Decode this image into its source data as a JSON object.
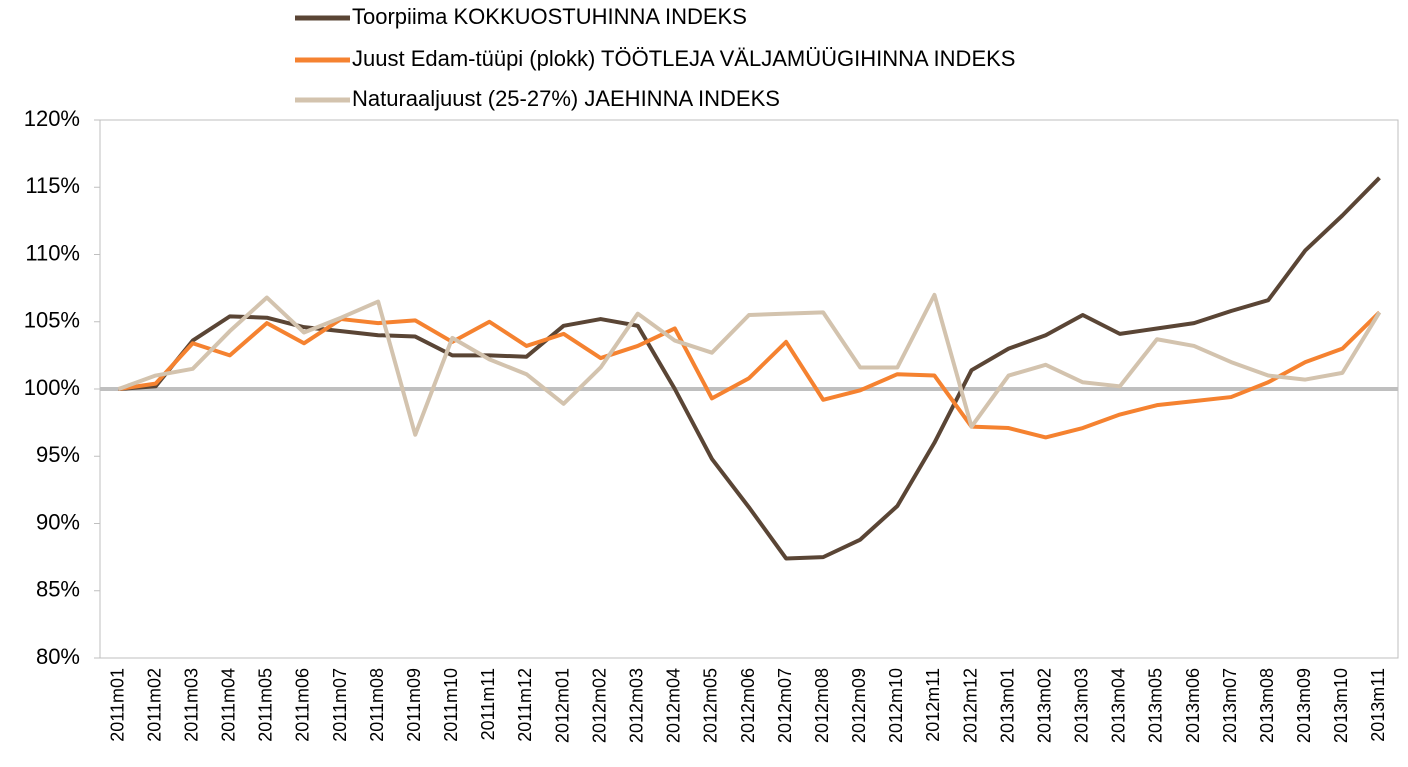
{
  "chart_data": {
    "type": "line",
    "categories": [
      "2011m01",
      "2011m02",
      "2011m03",
      "2011m04",
      "2011m05",
      "2011m06",
      "2011m07",
      "2011m08",
      "2011m09",
      "2011m10",
      "2011m11",
      "2011m12",
      "2012m01",
      "2012m02",
      "2012m03",
      "2012m04",
      "2012m05",
      "2012m06",
      "2012m07",
      "2012m08",
      "2012m09",
      "2012m10",
      "2012m11",
      "2012m12",
      "2013m01",
      "2013m02",
      "2013m03",
      "2013m04",
      "2013m05",
      "2013m06",
      "2013m07",
      "2013m08",
      "2013m09",
      "2013m10",
      "2013m11"
    ],
    "series": [
      {
        "name": "Toorpiima KOKKUOSTUHINNA INDEKS",
        "color": "#5a4535",
        "values": [
          100,
          100.2,
          103.6,
          105.4,
          105.3,
          104.6,
          104.3,
          104.0,
          103.9,
          102.5,
          102.5,
          102.4,
          104.7,
          105.2,
          104.7,
          100.0,
          94.8,
          91.2,
          87.4,
          87.5,
          88.8,
          91.3,
          96.0,
          101.4,
          103.0,
          104.0,
          105.5,
          104.1,
          104.5,
          104.9,
          105.8,
          106.6,
          110.3,
          112.9,
          115.7
        ]
      },
      {
        "name": "Juust Edam-tüüpi (plokk) TÖÖTLEJA VÄLJAMÜÜGIHINNA INDEKS",
        "color": "#f58230",
        "values": [
          100,
          100.4,
          103.4,
          102.5,
          104.9,
          103.4,
          105.2,
          104.9,
          105.1,
          103.5,
          105.0,
          103.2,
          104.1,
          102.3,
          103.2,
          104.5,
          99.3,
          100.8,
          103.5,
          99.2,
          99.9,
          101.1,
          101.0,
          97.2,
          97.1,
          96.4,
          97.1,
          98.1,
          98.8,
          99.1,
          99.4,
          100.5,
          102.0,
          103.0,
          105.7
        ]
      },
      {
        "name": "Naturaaljuust (25-27%) JAEHINNA INDEKS",
        "color": "#d3c3ae",
        "values": [
          100,
          101.0,
          101.5,
          104.3,
          106.8,
          104.2,
          105.3,
          106.5,
          96.6,
          103.8,
          102.2,
          101.1,
          98.9,
          101.6,
          105.6,
          103.6,
          102.7,
          105.5,
          105.6,
          105.7,
          101.6,
          101.6,
          107.0,
          97.2,
          101.0,
          101.8,
          100.5,
          100.2,
          103.7,
          103.2,
          102.0,
          101.0,
          100.7,
          101.2,
          105.7
        ]
      }
    ],
    "ylim": [
      80,
      120
    ],
    "yticks": [
      {
        "value": 80,
        "label": "80%"
      },
      {
        "value": 85,
        "label": "85%"
      },
      {
        "value": 90,
        "label": "90%"
      },
      {
        "value": 95,
        "label": "95%"
      },
      {
        "value": 100,
        "label": "100%"
      },
      {
        "value": 105,
        "label": "105%"
      },
      {
        "value": 110,
        "label": "110%"
      },
      {
        "value": 115,
        "label": "115%"
      },
      {
        "value": 120,
        "label": "120%"
      }
    ],
    "reference_line": 100,
    "reference_color": "#bfbfbf",
    "grid": false,
    "legend": "top"
  }
}
